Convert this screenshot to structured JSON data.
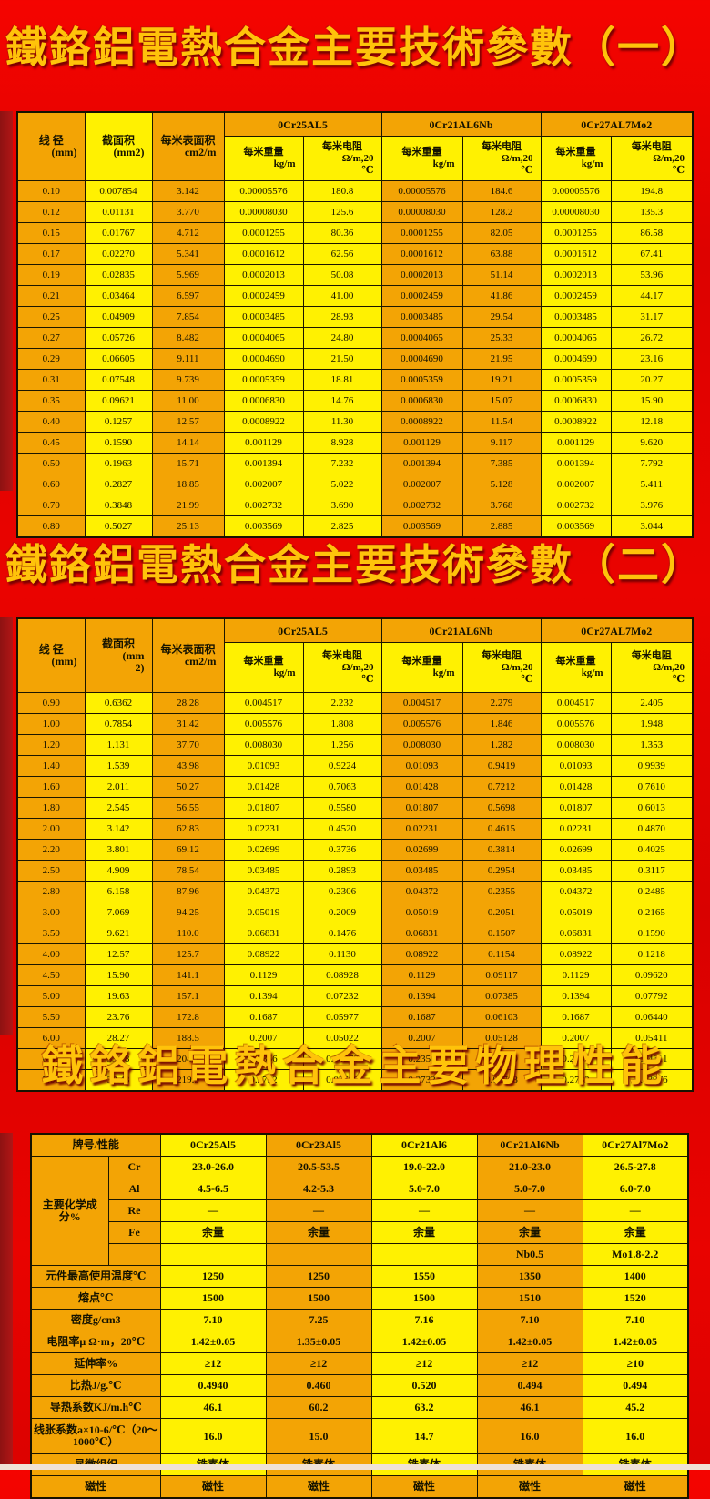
{
  "titles": {
    "t1": "鐵鉻鋁電熱合金主要技術參數（一）",
    "t2": "鐵鉻鋁電熱合金主要技術參數（二）",
    "t3": "鐵鉻鋁電熱合金主要物理性能"
  },
  "colors": {
    "background_red": "#e60200",
    "cell_orange": "#f3a405",
    "cell_yellow": "#fff101",
    "title_gold": "#ffc30a"
  },
  "table1": {
    "headers": {
      "diameter": "线 径",
      "diameter_unit": "(mm)",
      "area": "截面积",
      "area_unit": "(mm2)",
      "surface": "每米表面积",
      "surface_unit": "cm2/m"
    },
    "alloys": [
      "0Cr25AL5",
      "0Cr21AL6Nb",
      "0Cr27AL7Mo2"
    ],
    "sub": {
      "weight": "每米重量",
      "weight_unit": "kg/m",
      "res": "每米电阻",
      "res_unit": "Ω/m,20",
      "res_unit2": "℃"
    },
    "rows": [
      [
        "0.10",
        "0.007854",
        "3.142",
        "0.00005576",
        "180.8",
        "0.00005576",
        "184.6",
        "0.00005576",
        "194.8"
      ],
      [
        "0.12",
        "0.01131",
        "3.770",
        "0.00008030",
        "125.6",
        "0.00008030",
        "128.2",
        "0.00008030",
        "135.3"
      ],
      [
        "0.15",
        "0.01767",
        "4.712",
        "0.0001255",
        "80.36",
        "0.0001255",
        "82.05",
        "0.0001255",
        "86.58"
      ],
      [
        "0.17",
        "0.02270",
        "5.341",
        "0.0001612",
        "62.56",
        "0.0001612",
        "63.88",
        "0.0001612",
        "67.41"
      ],
      [
        "0.19",
        "0.02835",
        "5.969",
        "0.0002013",
        "50.08",
        "0.0002013",
        "51.14",
        "0.0002013",
        "53.96"
      ],
      [
        "0.21",
        "0.03464",
        "6.597",
        "0.0002459",
        "41.00",
        "0.0002459",
        "41.86",
        "0.0002459",
        "44.17"
      ],
      [
        "0.25",
        "0.04909",
        "7.854",
        "0.0003485",
        "28.93",
        "0.0003485",
        "29.54",
        "0.0003485",
        "31.17"
      ],
      [
        "0.27",
        "0.05726",
        "8.482",
        "0.0004065",
        "24.80",
        "0.0004065",
        "25.33",
        "0.0004065",
        "26.72"
      ],
      [
        "0.29",
        "0.06605",
        "9.111",
        "0.0004690",
        "21.50",
        "0.0004690",
        "21.95",
        "0.0004690",
        "23.16"
      ],
      [
        "0.31",
        "0.07548",
        "9.739",
        "0.0005359",
        "18.81",
        "0.0005359",
        "19.21",
        "0.0005359",
        "20.27"
      ],
      [
        "0.35",
        "0.09621",
        "11.00",
        "0.0006830",
        "14.76",
        "0.0006830",
        "15.07",
        "0.0006830",
        "15.90"
      ],
      [
        "0.40",
        "0.1257",
        "12.57",
        "0.0008922",
        "11.30",
        "0.0008922",
        "11.54",
        "0.0008922",
        "12.18"
      ],
      [
        "0.45",
        "0.1590",
        "14.14",
        "0.001129",
        "8.928",
        "0.001129",
        "9.117",
        "0.001129",
        "9.620"
      ],
      [
        "0.50",
        "0.1963",
        "15.71",
        "0.001394",
        "7.232",
        "0.001394",
        "7.385",
        "0.001394",
        "7.792"
      ],
      [
        "0.60",
        "0.2827",
        "18.85",
        "0.002007",
        "5.022",
        "0.002007",
        "5.128",
        "0.002007",
        "5.411"
      ],
      [
        "0.70",
        "0.3848",
        "21.99",
        "0.002732",
        "3.690",
        "0.002732",
        "3.768",
        "0.002732",
        "3.976"
      ],
      [
        "0.80",
        "0.5027",
        "25.13",
        "0.003569",
        "2.825",
        "0.003569",
        "2.885",
        "0.003569",
        "3.044"
      ]
    ]
  },
  "table2": {
    "headers": {
      "diameter": "线 径",
      "diameter_unit": "(mm)",
      "area": "截面积",
      "area_unit": "(mm",
      "area_unit2": "2)",
      "surface": "每米表面积",
      "surface_unit": "cm2/m"
    },
    "alloys": [
      "0Cr25AL5",
      "0Cr21AL6Nb",
      "0Cr27AL7Mo2"
    ],
    "sub": {
      "weight": "每米重量",
      "weight_unit": "kg/m",
      "res": "每米电阻",
      "res_unit": "Ω/m,20",
      "res_unit2": "℃"
    },
    "rows": [
      [
        "0.90",
        "0.6362",
        "28.28",
        "0.004517",
        "2.232",
        "0.004517",
        "2.279",
        "0.004517",
        "2.405"
      ],
      [
        "1.00",
        "0.7854",
        "31.42",
        "0.005576",
        "1.808",
        "0.005576",
        "1.846",
        "0.005576",
        "1.948"
      ],
      [
        "1.20",
        "1.131",
        "37.70",
        "0.008030",
        "1.256",
        "0.008030",
        "1.282",
        "0.008030",
        "1.353"
      ],
      [
        "1.40",
        "1.539",
        "43.98",
        "0.01093",
        "0.9224",
        "0.01093",
        "0.9419",
        "0.01093",
        "0.9939"
      ],
      [
        "1.60",
        "2.011",
        "50.27",
        "0.01428",
        "0.7063",
        "0.01428",
        "0.7212",
        "0.01428",
        "0.7610"
      ],
      [
        "1.80",
        "2.545",
        "56.55",
        "0.01807",
        "0.5580",
        "0.01807",
        "0.5698",
        "0.01807",
        "0.6013"
      ],
      [
        "2.00",
        "3.142",
        "62.83",
        "0.02231",
        "0.4520",
        "0.02231",
        "0.4615",
        "0.02231",
        "0.4870"
      ],
      [
        "2.20",
        "3.801",
        "69.12",
        "0.02699",
        "0.3736",
        "0.02699",
        "0.3814",
        "0.02699",
        "0.4025"
      ],
      [
        "2.50",
        "4.909",
        "78.54",
        "0.03485",
        "0.2893",
        "0.03485",
        "0.2954",
        "0.03485",
        "0.3117"
      ],
      [
        "2.80",
        "6.158",
        "87.96",
        "0.04372",
        "0.2306",
        "0.04372",
        "0.2355",
        "0.04372",
        "0.2485"
      ],
      [
        "3.00",
        "7.069",
        "94.25",
        "0.05019",
        "0.2009",
        "0.05019",
        "0.2051",
        "0.05019",
        "0.2165"
      ],
      [
        "3.50",
        "9.621",
        "110.0",
        "0.06831",
        "0.1476",
        "0.06831",
        "0.1507",
        "0.06831",
        "0.1590"
      ],
      [
        "4.00",
        "12.57",
        "125.7",
        "0.08922",
        "0.1130",
        "0.08922",
        "0.1154",
        "0.08922",
        "0.1218"
      ],
      [
        "4.50",
        "15.90",
        "141.1",
        "0.1129",
        "0.08928",
        "0.1129",
        "0.09117",
        "0.1129",
        "0.09620"
      ],
      [
        "5.00",
        "19.63",
        "157.1",
        "0.1394",
        "0.07232",
        "0.1394",
        "0.07385",
        "0.1394",
        "0.07792"
      ],
      [
        "5.50",
        "23.76",
        "172.8",
        "0.1687",
        "0.05977",
        "0.1687",
        "0.06103",
        "0.1687",
        "0.06440"
      ],
      [
        "6.00",
        "28.27",
        "188.5",
        "0.2007",
        "0.05022",
        "0.2007",
        "0.05128",
        "0.2007",
        "0.05411"
      ],
      [
        "6.50",
        "33.18",
        "204.2",
        "0.2356",
        "0.04279",
        "0.2356",
        "0.04370",
        "0.2356",
        "0.04611"
      ],
      [
        "7.00",
        "38.48",
        "219.9",
        "0.2732",
        "0.03690",
        "0.2732",
        "0.03768",
        "0.2732",
        "0.03976"
      ]
    ]
  },
  "table3": {
    "header": [
      "牌号/性能",
      "0Cr25Al5",
      "0Cr23Al5",
      "0Cr21Al6",
      "0Cr21Al6Nb",
      "0Cr27Al7Mo2"
    ],
    "chem_label": "主要化学成分%",
    "chem_rows": [
      {
        "element": "Cr",
        "values": [
          "23.0-26.0",
          "20.5-53.5",
          "19.0-22.0",
          "21.0-23.0",
          "26.5-27.8"
        ]
      },
      {
        "element": "Al",
        "values": [
          "4.5-6.5",
          "4.2-5.3",
          "5.0-7.0",
          "5.0-7.0",
          "6.0-7.0"
        ]
      },
      {
        "element": "Re",
        "values": [
          "—",
          "—",
          "—",
          "—",
          "—"
        ]
      },
      {
        "element": "Fe",
        "values": [
          "余量",
          "余量",
          "余量",
          "余量",
          "余量"
        ]
      },
      {
        "element": "",
        "values": [
          "",
          "",
          "",
          "Nb0.5",
          "Mo1.8-2.2"
        ]
      }
    ],
    "prop_rows": [
      {
        "label": "元件最高使用温度℃",
        "values": [
          "1250",
          "1250",
          "1550",
          "1350",
          "1400"
        ]
      },
      {
        "label": "熔点℃",
        "values": [
          "1500",
          "1500",
          "1500",
          "1510",
          "1520"
        ]
      },
      {
        "label": "密度g/cm3",
        "values": [
          "7.10",
          "7.25",
          "7.16",
          "7.10",
          "7.10"
        ]
      },
      {
        "label": "电阻率μ Ω·m，20℃",
        "values": [
          "1.42±0.05",
          "1.35±0.05",
          "1.42±0.05",
          "1.42±0.05",
          "1.42±0.05"
        ]
      },
      {
        "label": "延伸率%",
        "values": [
          "≥12",
          "≥12",
          "≥12",
          "≥12",
          "≥10"
        ]
      },
      {
        "label": "比热J/g.℃",
        "values": [
          "0.4940",
          "0.460",
          "0.520",
          "0.494",
          "0.494"
        ]
      },
      {
        "label": "导热系数KJ/m.h℃",
        "values": [
          "46.1",
          "60.2",
          "63.2",
          "46.1",
          "45.2"
        ]
      },
      {
        "label": "线胀系数a×10-6/℃（20～1000℃）",
        "values": [
          "16.0",
          "15.0",
          "14.7",
          "16.0",
          "16.0"
        ]
      },
      {
        "label": "显微组织",
        "values": [
          "铁素体",
          "铁素体",
          "铁素体",
          "铁素体",
          "铁素体"
        ]
      },
      {
        "label": "磁性",
        "values": [
          "磁性",
          "磁性",
          "磁性",
          "磁性",
          "磁性"
        ]
      }
    ]
  }
}
